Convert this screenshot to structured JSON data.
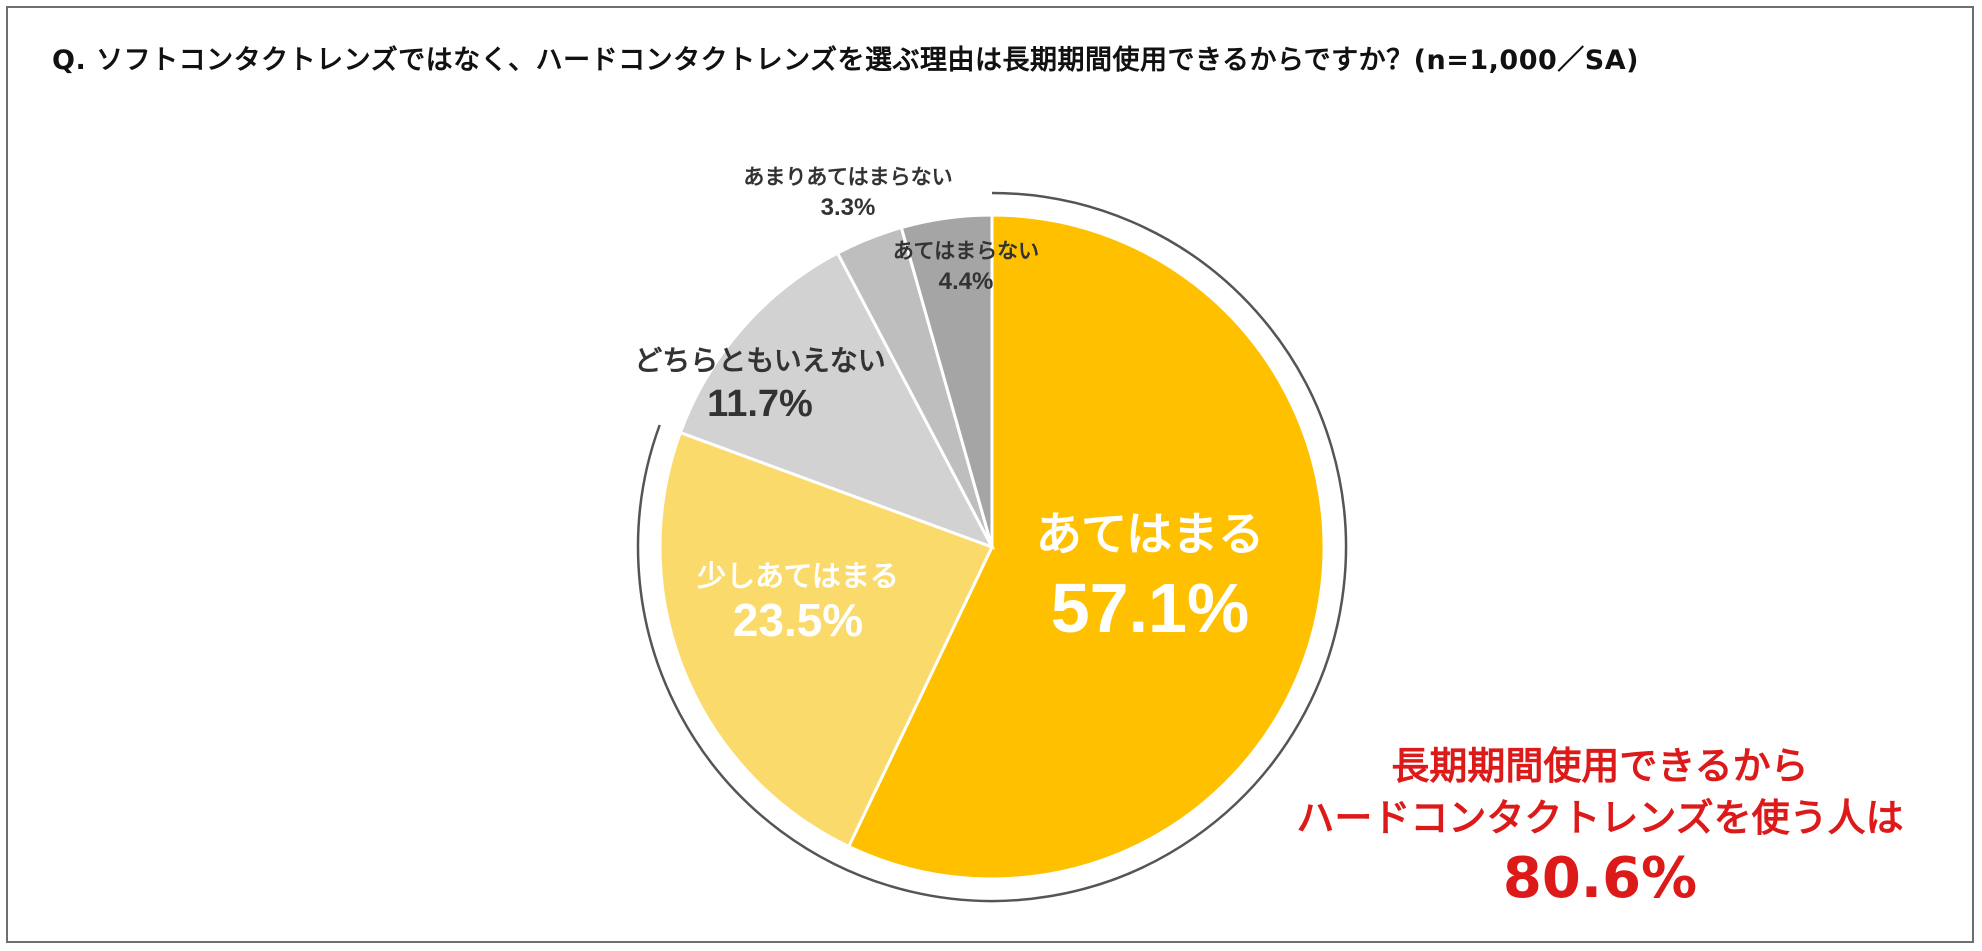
{
  "title": "Q. ソフトコンタクトレンズではなく、ハードコンタクトレンズを選ぶ理由は長期期間使用できるからですか？(n=1,000／SA)",
  "chart_data": {
    "type": "pie",
    "title": "Q. ソフトコンタクトレンズではなく、ハードコンタクトレンズを選ぶ理由は長期期間使用できるからですか？(n=1,000／SA)",
    "slices": [
      {
        "label": "あてはまる",
        "value": 57.1,
        "display": "57.1%",
        "color": "#FFC000"
      },
      {
        "label": "少しあてはまる",
        "value": 23.5,
        "display": "23.5%",
        "color": "#FBDA6C"
      },
      {
        "label": "どちらともいえない",
        "value": 11.7,
        "display": "11.7%",
        "color": "#D3D2D2"
      },
      {
        "label": "あまりあてはまらない",
        "value": 3.3,
        "display": "3.3%",
        "color": "#BEBEBE"
      },
      {
        "label": "あてはまらない",
        "value": 4.4,
        "display": "4.4%",
        "color": "#A5A5A5"
      }
    ],
    "start": "12 o'clock",
    "direction": "clockwise",
    "callout": {
      "lines": [
        "長期期間使用できるから",
        "ハードコンタクトレンズを使う人は"
      ],
      "value": "80.6%"
    }
  }
}
